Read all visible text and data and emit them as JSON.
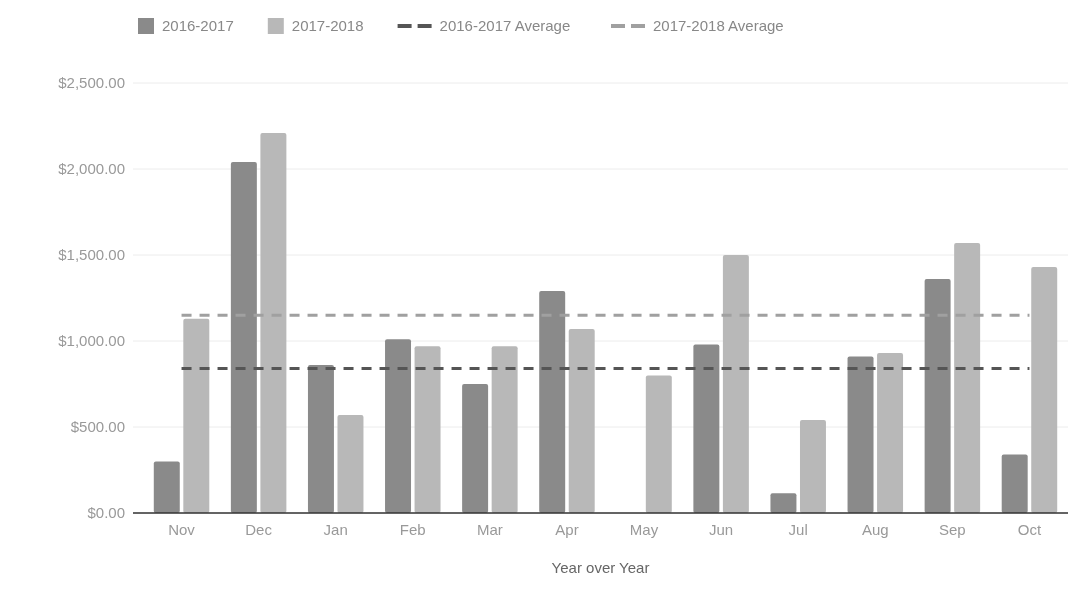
{
  "chart_data": {
    "type": "bar",
    "xlabel": "Year over Year",
    "categories": [
      "Nov",
      "Dec",
      "Jan",
      "Feb",
      "Mar",
      "Apr",
      "May",
      "Jun",
      "Jul",
      "Aug",
      "Sep",
      "Oct"
    ],
    "series": [
      {
        "name": "2016-2017",
        "color": "#8a8a8a",
        "values": [
          300,
          2040,
          860,
          1010,
          750,
          1290,
          null,
          980,
          115,
          910,
          1360,
          340
        ]
      },
      {
        "name": "2017-2018",
        "color": "#b8b8b8",
        "values": [
          1130,
          2210,
          570,
          970,
          970,
          1070,
          800,
          1500,
          540,
          930,
          1570,
          1430
        ]
      },
      {
        "name": "2016-2017 Average",
        "type": "line",
        "line_style": "dashed",
        "color": "#555555",
        "values": [
          840,
          840,
          840,
          840,
          840,
          840,
          840,
          840,
          840,
          840,
          840,
          840
        ]
      },
      {
        "name": "2017-2018 Average",
        "type": "line",
        "line_style": "dashed",
        "color": "#a0a0a0",
        "values": [
          1150,
          1150,
          1150,
          1150,
          1150,
          1150,
          1150,
          1150,
          1150,
          1150,
          1150,
          1150
        ]
      }
    ],
    "ylim": [
      0,
      2500
    ],
    "yticks": [
      {
        "value": 0,
        "label": "$0.00"
      },
      {
        "value": 500,
        "label": "$500.00"
      },
      {
        "value": 1000,
        "label": "$1,000.00"
      },
      {
        "value": 1500,
        "label": "$1,500.00"
      },
      {
        "value": 2000,
        "label": "$2,000.00"
      },
      {
        "value": 2500,
        "label": "$2,500.00"
      }
    ],
    "grid": "y",
    "legend": "top"
  }
}
